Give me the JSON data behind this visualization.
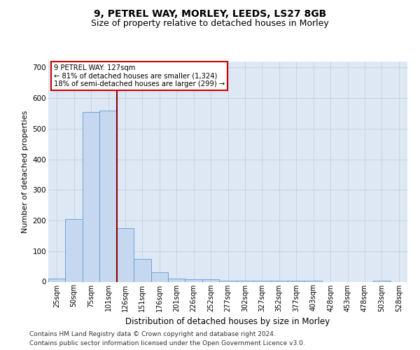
{
  "title1": "9, PETREL WAY, MORLEY, LEEDS, LS27 8GB",
  "title2": "Size of property relative to detached houses in Morley",
  "xlabel": "Distribution of detached houses by size in Morley",
  "ylabel": "Number of detached properties",
  "footer1": "Contains HM Land Registry data © Crown copyright and database right 2024.",
  "footer2": "Contains public sector information licensed under the Open Government Licence v3.0.",
  "annotation_line1": "9 PETREL WAY: 127sqm",
  "annotation_line2": "← 81% of detached houses are smaller (1,324)",
  "annotation_line3": "18% of semi-detached houses are larger (299) →",
  "bar_color": "#c5d8ef",
  "bar_edge_color": "#5b9bd5",
  "vline_color": "#8b0000",
  "annotation_box_color": "#ffffff",
  "annotation_box_edge": "#cc0000",
  "grid_color": "#c8d4e4",
  "background_color": "#dde8f4",
  "categories": [
    "25sqm",
    "50sqm",
    "75sqm",
    "101sqm",
    "126sqm",
    "151sqm",
    "176sqm",
    "201sqm",
    "226sqm",
    "252sqm",
    "277sqm",
    "302sqm",
    "327sqm",
    "352sqm",
    "377sqm",
    "403sqm",
    "428sqm",
    "453sqm",
    "478sqm",
    "503sqm",
    "528sqm"
  ],
  "values": [
    10,
    205,
    555,
    560,
    175,
    75,
    30,
    10,
    8,
    8,
    3,
    3,
    3,
    3,
    3,
    3,
    0,
    0,
    0,
    3,
    0
  ],
  "vline_x": 4.5,
  "ylim": [
    0,
    720
  ],
  "yticks": [
    0,
    100,
    200,
    300,
    400,
    500,
    600,
    700
  ],
  "title1_fontsize": 10,
  "title2_fontsize": 9,
  "xlabel_fontsize": 8.5,
  "ylabel_fontsize": 8,
  "tick_fontsize": 7,
  "footer_fontsize": 6.5
}
